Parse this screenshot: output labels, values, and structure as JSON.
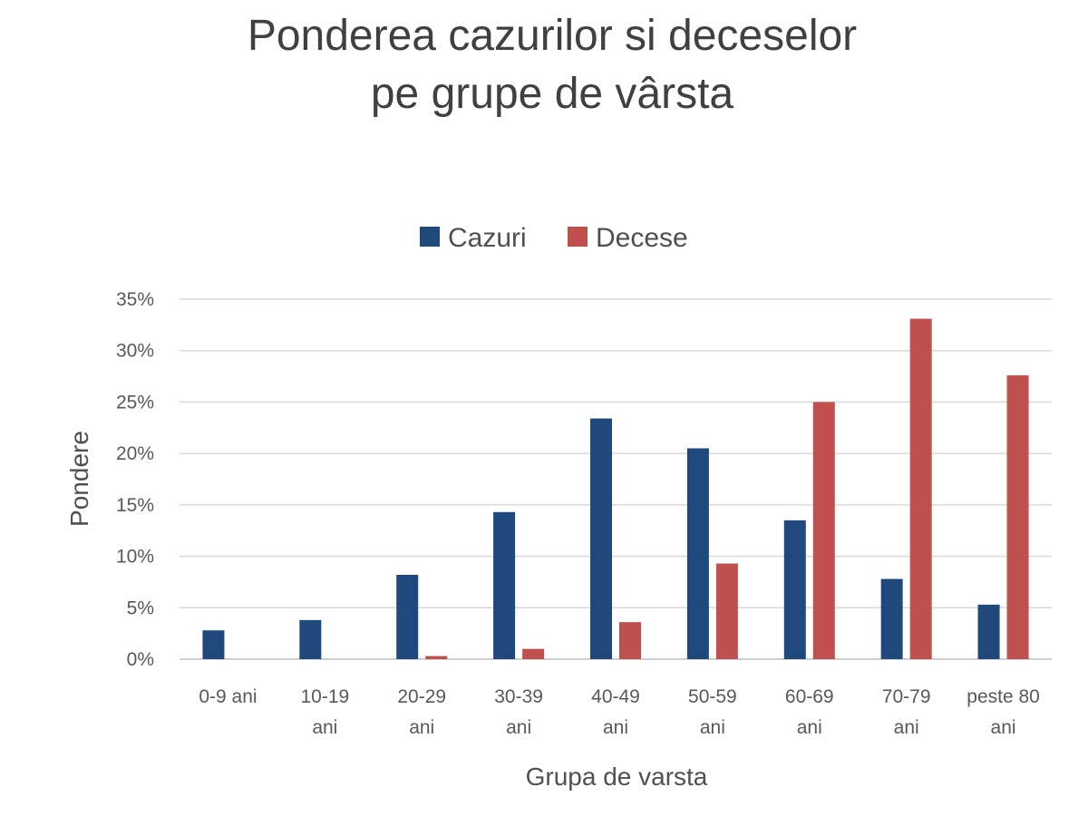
{
  "chart_data": {
    "type": "bar",
    "title_lines": [
      "Ponderea cazurilor si deceselor",
      "pe grupe de vârsta"
    ],
    "xlabel": "Grupa de varsta",
    "ylabel": "Pondere",
    "ylim": [
      0,
      35
    ],
    "yticks": [
      0,
      5,
      10,
      15,
      20,
      25,
      30,
      35
    ],
    "ytick_labels": [
      "0%",
      "5%",
      "10%",
      "15%",
      "20%",
      "25%",
      "30%",
      "35%"
    ],
    "categories": [
      [
        "0-9 ani"
      ],
      [
        "10-19",
        "ani"
      ],
      [
        "20-29",
        "ani"
      ],
      [
        "30-39",
        "ani"
      ],
      [
        "40-49",
        "ani"
      ],
      [
        "50-59",
        "ani"
      ],
      [
        "60-69",
        "ani"
      ],
      [
        "70-79",
        "ani"
      ],
      [
        "peste 80",
        "ani"
      ]
    ],
    "series": [
      {
        "name": "Cazuri",
        "color": "#1f497d",
        "values": [
          2.8,
          3.8,
          8.2,
          14.3,
          23.4,
          20.5,
          13.5,
          7.8,
          5.3
        ]
      },
      {
        "name": "Decese",
        "color": "#c0504d",
        "values": [
          0,
          0,
          0.3,
          1.0,
          3.6,
          9.3,
          25.0,
          33.1,
          27.6
        ]
      }
    ],
    "grid": true,
    "legend_position": "top-center"
  }
}
